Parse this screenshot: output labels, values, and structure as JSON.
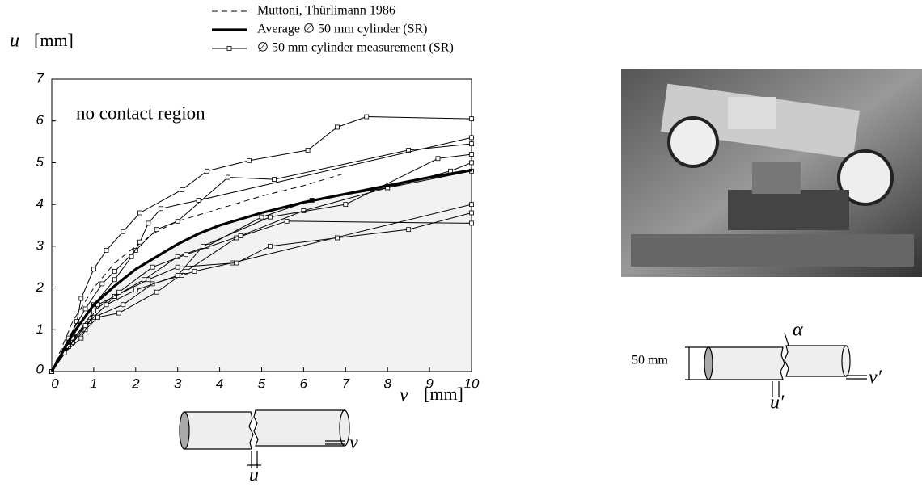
{
  "chart_data": {
    "type": "line",
    "ylabel": "u",
    "yunit": "[mm]",
    "xlabel": "v",
    "xunit": "[mm]",
    "annotation": "no contact region",
    "xlim": [
      0,
      10
    ],
    "xticks": [
      0,
      1,
      2,
      3,
      4,
      5,
      6,
      7,
      8,
      9,
      10
    ],
    "ylim": [
      0,
      7
    ],
    "yticks": [
      0,
      1,
      2,
      3,
      4,
      5,
      6,
      7
    ],
    "series": [
      {
        "name": "Muttoni, Thürlimann 1986",
        "color": "#000000",
        "style": "dashed",
        "x": [
          0,
          0.5,
          1,
          1.5,
          2,
          2.5,
          3,
          4,
          5,
          6,
          7
        ],
        "values": [
          0,
          1.2,
          2.0,
          2.6,
          3.0,
          3.35,
          3.6,
          3.9,
          4.2,
          4.45,
          4.75
        ]
      },
      {
        "name": "Average ∅ 50 mm cylinder (SR)",
        "color": "#000000",
        "style": "bold",
        "fill": "#f2f2f2",
        "x": [
          0,
          0.5,
          1,
          1.5,
          2,
          2.5,
          3,
          3.5,
          4,
          5,
          6,
          7,
          8,
          9,
          10
        ],
        "values": [
          0,
          0.9,
          1.6,
          2.05,
          2.45,
          2.75,
          3.05,
          3.3,
          3.5,
          3.8,
          4.05,
          4.25,
          4.45,
          4.65,
          4.82
        ]
      },
      {
        "name": "∅ 50 mm cylinder measurement (SR)",
        "color": "#000000",
        "style": "markers",
        "x": [
          0,
          0.3,
          0.6,
          0.7,
          1,
          1.3,
          1.7,
          2.1,
          3.1,
          3.7,
          4.7,
          6.1,
          6.8,
          7.5,
          10
        ],
        "values": [
          0,
          0.5,
          1.2,
          1.75,
          2.45,
          2.9,
          3.35,
          3.8,
          4.35,
          4.8,
          5.05,
          5.3,
          5.85,
          6.1,
          6.05
        ]
      },
      {
        "color": "#000000",
        "style": "markers",
        "x": [
          0,
          0.4,
          0.8,
          1.2,
          1.5,
          2,
          2.5,
          3,
          4.2,
          5.3,
          8.5,
          10
        ],
        "values": [
          0,
          0.8,
          1.5,
          2.1,
          2.4,
          2.9,
          3.4,
          3.6,
          4.65,
          4.6,
          5.3,
          5.45
        ]
      },
      {
        "color": "#000000",
        "style": "markers",
        "x": [
          0,
          0.5,
          1,
          1.5,
          1.9,
          2.1,
          2.3,
          2.6,
          3.5,
          10
        ],
        "values": [
          0,
          0.85,
          1.6,
          2.2,
          2.75,
          3.1,
          3.55,
          3.9,
          4.1,
          5.6
        ]
      },
      {
        "color": "#000000",
        "style": "markers",
        "x": [
          0,
          0.4,
          0.9,
          1.5,
          2.2,
          3,
          3.7,
          5,
          6.2,
          8,
          9.5,
          10
        ],
        "values": [
          0,
          0.6,
          1.2,
          1.8,
          2.2,
          2.75,
          3,
          3.7,
          4.1,
          4.4,
          4.8,
          5.0
        ]
      },
      {
        "color": "#000000",
        "style": "markers",
        "x": [
          0,
          0.5,
          1,
          1.7,
          2.4,
          3.1,
          3.4,
          4.3,
          10
        ],
        "values": [
          0,
          0.8,
          1.3,
          1.6,
          2.1,
          2.3,
          2.4,
          2.6,
          4.0
        ]
      },
      {
        "color": "#000000",
        "style": "markers",
        "x": [
          0,
          0.5,
          0.8,
          1.1,
          1.6,
          2.5,
          3.2,
          4.4,
          5.6,
          10
        ],
        "values": [
          0,
          0.7,
          1.0,
          1.3,
          1.4,
          1.9,
          2.4,
          3.2,
          3.6,
          3.55
        ]
      },
      {
        "color": "#000000",
        "style": "markers",
        "x": [
          0,
          0.3,
          0.7,
          1.1,
          1.5,
          2.3,
          3,
          4.4,
          5.2,
          6.8,
          8.5,
          10
        ],
        "values": [
          0,
          0.45,
          0.8,
          1.6,
          1.8,
          2.2,
          2.5,
          2.6,
          3.0,
          3.2,
          3.4,
          3.8
        ]
      },
      {
        "color": "#000000",
        "style": "markers",
        "x": [
          0,
          0.4,
          1,
          1.6,
          2.4,
          3.2,
          4.5,
          6,
          8,
          10
        ],
        "values": [
          0,
          0.6,
          1.45,
          1.9,
          2.5,
          2.8,
          3.25,
          3.85,
          4.4,
          4.8
        ]
      },
      {
        "color": "#000000",
        "style": "markers",
        "x": [
          0,
          0.3,
          0.8,
          1.3,
          2,
          3,
          3.6,
          5.2,
          7,
          9.2,
          10
        ],
        "values": [
          0,
          0.45,
          1.1,
          1.6,
          1.95,
          2.3,
          3.0,
          3.7,
          4.0,
          5.1,
          5.2
        ]
      }
    ]
  },
  "diagram": {
    "left_v": "v",
    "left_u": "u",
    "right_size": "50 mm",
    "right_alpha": "α",
    "right_v": "v′",
    "right_u": "u′"
  }
}
